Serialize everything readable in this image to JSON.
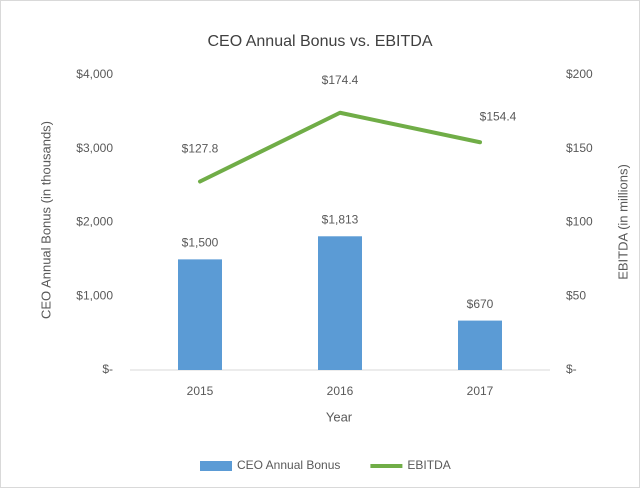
{
  "chart_data": {
    "type": "bar",
    "title": "CEO Annual Bonus vs. EBITDA",
    "x_label": "Year",
    "y_label": "CEO Annual Bonus (in thousands)",
    "y2_label": "EBITDA (in millions)",
    "categories": [
      "2015",
      "2016",
      "2017"
    ],
    "series": [
      {
        "name": "CEO Annual Bonus",
        "type": "bar",
        "color": "#5b9bd5",
        "values": [
          1500,
          1813,
          670
        ],
        "value_labels": [
          "$1,500",
          "$1,813",
          "$670"
        ]
      },
      {
        "name": "EBITDA",
        "type": "line",
        "axis": "y2",
        "color": "#70ad47",
        "values": [
          127.8,
          174.4,
          154.4
        ],
        "value_labels": [
          "$127.8",
          "$174.4",
          "$154.4"
        ]
      }
    ],
    "ylim": [
      0,
      4000
    ],
    "yticks": [
      {
        "value": 0,
        "label": "$-"
      },
      {
        "value": 1000,
        "label": "$1,000"
      },
      {
        "value": 2000,
        "label": "$2,000"
      },
      {
        "value": 3000,
        "label": "$3,000"
      },
      {
        "value": 4000,
        "label": "$4,000"
      }
    ],
    "y2lim": [
      0,
      200
    ],
    "y2ticks": [
      {
        "value": 0,
        "label": "$-"
      },
      {
        "value": 50,
        "label": "$50"
      },
      {
        "value": 100,
        "label": "$100"
      },
      {
        "value": 150,
        "label": "$150"
      },
      {
        "value": 200,
        "label": "$200"
      }
    ],
    "grid": false,
    "legend": "bottom"
  }
}
